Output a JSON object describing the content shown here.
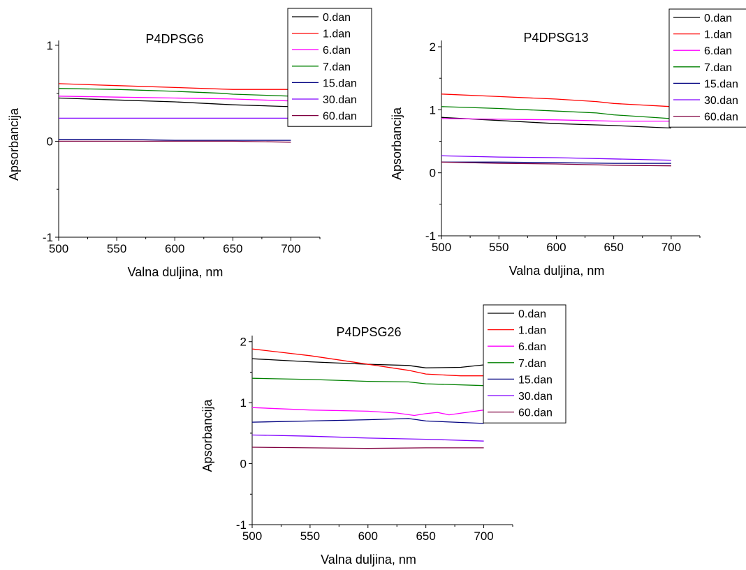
{
  "chart_data": [
    {
      "type": "line",
      "title": "P4DPSG6",
      "xlabel": "Valna duljina, nm",
      "ylabel": "Apsorbancija",
      "xlim": [
        500,
        725
      ],
      "ylim": [
        -1,
        1.05
      ],
      "xticks": [
        500,
        550,
        600,
        650,
        700
      ],
      "yticks": [
        -1,
        0,
        1
      ],
      "legend_position": "top-right",
      "series": [
        {
          "name": "0.dan",
          "color": "#000000",
          "points": [
            [
              500,
              0.45
            ],
            [
              550,
              0.43
            ],
            [
              600,
              0.41
            ],
            [
              650,
              0.38
            ],
            [
              700,
              0.36
            ]
          ]
        },
        {
          "name": "1.dan",
          "color": "#ff0000",
          "points": [
            [
              500,
              0.6
            ],
            [
              550,
              0.58
            ],
            [
              600,
              0.56
            ],
            [
              650,
              0.54
            ],
            [
              700,
              0.54
            ]
          ]
        },
        {
          "name": "6.dan",
          "color": "#ff00ff",
          "points": [
            [
              500,
              0.47
            ],
            [
              550,
              0.46
            ],
            [
              600,
              0.45
            ],
            [
              650,
              0.44
            ],
            [
              700,
              0.42
            ]
          ]
        },
        {
          "name": "7.dan",
          "color": "#008000",
          "points": [
            [
              500,
              0.55
            ],
            [
              550,
              0.54
            ],
            [
              600,
              0.52
            ],
            [
              640,
              0.5
            ],
            [
              650,
              0.49
            ],
            [
              700,
              0.47
            ]
          ]
        },
        {
          "name": "15.dan",
          "color": "#000080",
          "points": [
            [
              500,
              0.02
            ],
            [
              550,
              0.02
            ],
            [
              600,
              0.01
            ],
            [
              650,
              0.01
            ],
            [
              700,
              0.01
            ]
          ]
        },
        {
          "name": "30.dan",
          "color": "#8000ff",
          "points": [
            [
              500,
              0.24
            ],
            [
              550,
              0.24
            ],
            [
              600,
              0.24
            ],
            [
              650,
              0.24
            ],
            [
              700,
              0.24
            ]
          ]
        },
        {
          "name": "60.dan",
          "color": "#800040",
          "points": [
            [
              500,
              0.0
            ],
            [
              550,
              0.0
            ],
            [
              600,
              0.0
            ],
            [
              650,
              0.0
            ],
            [
              700,
              -0.01
            ]
          ]
        }
      ]
    },
    {
      "type": "line",
      "title": "P4DPSG13",
      "xlabel": "Valna duljina, nm",
      "ylabel": "Apsorbancija",
      "xlim": [
        500,
        725
      ],
      "ylim": [
        -1,
        2.1
      ],
      "xticks": [
        500,
        550,
        600,
        650,
        700
      ],
      "yticks": [
        -1,
        0,
        1,
        2
      ],
      "legend_position": "top-right",
      "series": [
        {
          "name": "0.dan",
          "color": "#000000",
          "points": [
            [
              500,
              0.88
            ],
            [
              550,
              0.83
            ],
            [
              600,
              0.78
            ],
            [
              650,
              0.75
            ],
            [
              700,
              0.71
            ]
          ]
        },
        {
          "name": "1.dan",
          "color": "#ff0000",
          "points": [
            [
              500,
              1.25
            ],
            [
              550,
              1.21
            ],
            [
              600,
              1.17
            ],
            [
              635,
              1.13
            ],
            [
              650,
              1.1
            ],
            [
              700,
              1.05
            ]
          ]
        },
        {
          "name": "6.dan",
          "color": "#ff00ff",
          "points": [
            [
              500,
              0.86
            ],
            [
              550,
              0.85
            ],
            [
              600,
              0.84
            ],
            [
              650,
              0.82
            ],
            [
              700,
              0.82
            ]
          ]
        },
        {
          "name": "7.dan",
          "color": "#008000",
          "points": [
            [
              500,
              1.05
            ],
            [
              550,
              1.02
            ],
            [
              600,
              0.98
            ],
            [
              635,
              0.95
            ],
            [
              650,
              0.92
            ],
            [
              700,
              0.86
            ]
          ]
        },
        {
          "name": "15.dan",
          "color": "#000080",
          "points": [
            [
              500,
              0.17
            ],
            [
              550,
              0.17
            ],
            [
              600,
              0.16
            ],
            [
              650,
              0.15
            ],
            [
              700,
              0.15
            ]
          ]
        },
        {
          "name": "30.dan",
          "color": "#8000ff",
          "points": [
            [
              500,
              0.27
            ],
            [
              550,
              0.25
            ],
            [
              600,
              0.24
            ],
            [
              650,
              0.22
            ],
            [
              700,
              0.2
            ]
          ]
        },
        {
          "name": "60.dan",
          "color": "#800040",
          "points": [
            [
              500,
              0.17
            ],
            [
              550,
              0.15
            ],
            [
              600,
              0.14
            ],
            [
              650,
              0.12
            ],
            [
              700,
              0.11
            ]
          ]
        }
      ]
    },
    {
      "type": "line",
      "title": "P4DPSG26",
      "xlabel": "Valna duljina, nm",
      "ylabel": "Apsorbancija",
      "xlim": [
        500,
        725
      ],
      "ylim": [
        -1,
        2.1
      ],
      "xticks": [
        500,
        550,
        600,
        650,
        700
      ],
      "yticks": [
        -1,
        0,
        1,
        2
      ],
      "legend_position": "top-right",
      "series": [
        {
          "name": "0.dan",
          "color": "#000000",
          "points": [
            [
              500,
              1.72
            ],
            [
              550,
              1.67
            ],
            [
              600,
              1.63
            ],
            [
              635,
              1.61
            ],
            [
              650,
              1.57
            ],
            [
              680,
              1.58
            ],
            [
              700,
              1.62
            ]
          ]
        },
        {
          "name": "1.dan",
          "color": "#ff0000",
          "points": [
            [
              500,
              1.88
            ],
            [
              550,
              1.77
            ],
            [
              600,
              1.63
            ],
            [
              635,
              1.53
            ],
            [
              650,
              1.47
            ],
            [
              680,
              1.44
            ],
            [
              700,
              1.44
            ]
          ]
        },
        {
          "name": "6.dan",
          "color": "#ff00ff",
          "points": [
            [
              500,
              0.92
            ],
            [
              550,
              0.88
            ],
            [
              600,
              0.86
            ],
            [
              625,
              0.83
            ],
            [
              640,
              0.79
            ],
            [
              650,
              0.82
            ],
            [
              660,
              0.84
            ],
            [
              670,
              0.8
            ],
            [
              685,
              0.84
            ],
            [
              700,
              0.88
            ]
          ]
        },
        {
          "name": "7.dan",
          "color": "#008000",
          "points": [
            [
              500,
              1.4
            ],
            [
              550,
              1.38
            ],
            [
              600,
              1.35
            ],
            [
              635,
              1.34
            ],
            [
              650,
              1.31
            ],
            [
              700,
              1.28
            ]
          ]
        },
        {
          "name": "15.dan",
          "color": "#000080",
          "points": [
            [
              500,
              0.68
            ],
            [
              550,
              0.7
            ],
            [
              600,
              0.72
            ],
            [
              635,
              0.74
            ],
            [
              650,
              0.7
            ],
            [
              700,
              0.66
            ]
          ]
        },
        {
          "name": "30.dan",
          "color": "#8000ff",
          "points": [
            [
              500,
              0.47
            ],
            [
              550,
              0.45
            ],
            [
              600,
              0.42
            ],
            [
              650,
              0.4
            ],
            [
              700,
              0.37
            ]
          ]
        },
        {
          "name": "60.dan",
          "color": "#800040",
          "points": [
            [
              500,
              0.27
            ],
            [
              550,
              0.26
            ],
            [
              600,
              0.25
            ],
            [
              650,
              0.26
            ],
            [
              700,
              0.26
            ]
          ]
        }
      ]
    }
  ]
}
